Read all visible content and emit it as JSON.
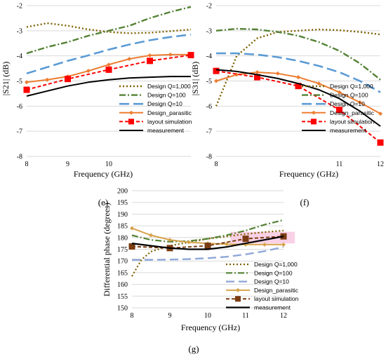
{
  "panels": [
    {
      "caption": "(e)",
      "chart_data": {
        "type": "line",
        "title": "",
        "xlabel": "Frequency (GHz)",
        "ylabel": "|S21| (dB)",
        "xlim": [
          8,
          12
        ],
        "ylim": [
          -8,
          -2
        ],
        "xticks": [
          8,
          9,
          10
        ],
        "yticks": [
          -2,
          -3,
          -4,
          -5,
          -6,
          -7,
          -8
        ],
        "legend": "bottom-right",
        "series": [
          {
            "name": "Design Q=1,000",
            "x": [
              8,
              8.5,
              9,
              9.5,
              10,
              10.5,
              11,
              11.5,
              12
            ],
            "y": [
              -2.85,
              -2.7,
              -2.8,
              -2.95,
              -3.05,
              -3.1,
              -3.08,
              -3.02,
              -2.95
            ]
          },
          {
            "name": "Design Q=100",
            "x": [
              8,
              8.5,
              9,
              9.5,
              10,
              10.5,
              11,
              11.5,
              12
            ],
            "y": [
              -3.9,
              -3.65,
              -3.45,
              -3.2,
              -3.0,
              -2.8,
              -2.5,
              -2.25,
              -2.05
            ]
          },
          {
            "name": "Design Q=10",
            "x": [
              8,
              8.5,
              9,
              9.5,
              10,
              10.5,
              11,
              11.5,
              12
            ],
            "y": [
              -4.7,
              -4.45,
              -4.2,
              -3.98,
              -3.75,
              -3.55,
              -3.38,
              -3.25,
              -3.15
            ]
          },
          {
            "name": "Design_parasitic",
            "x": [
              8,
              8.5,
              9,
              9.5,
              10,
              10.5,
              11,
              11.5,
              12
            ],
            "y": [
              -5.05,
              -4.95,
              -4.82,
              -4.6,
              -4.35,
              -4.12,
              -3.98,
              -3.95,
              -3.95
            ]
          },
          {
            "name": "layout simulation",
            "x": [
              8,
              9,
              10,
              11,
              12
            ],
            "y": [
              -5.35,
              -4.92,
              -4.55,
              -4.2,
              -3.97
            ]
          },
          {
            "name": "measurement",
            "x": [
              8,
              8.5,
              9,
              9.5,
              10,
              10.5,
              11,
              11.5,
              12
            ],
            "y": [
              -5.6,
              -5.4,
              -5.2,
              -5.05,
              -4.95,
              -4.88,
              -4.85,
              -4.82,
              -4.82
            ]
          }
        ]
      }
    },
    {
      "caption": "(f)",
      "chart_data": {
        "type": "line",
        "title": "",
        "xlabel": "Frequency (GHz)",
        "ylabel": "|S31| (dB)",
        "xlim": [
          8,
          12
        ],
        "ylim": [
          -8,
          -2
        ],
        "xticks": [
          8,
          11,
          12
        ],
        "yticks": [
          -2,
          -3,
          -4,
          -5,
          -6,
          -7,
          -8
        ],
        "legend": "bottom-right",
        "series": [
          {
            "name": "Design Q=1,000",
            "x": [
              8,
              8.5,
              9,
              9.5,
              10,
              10.5,
              11,
              11.5,
              12
            ],
            "y": [
              -6.0,
              -4.0,
              -3.3,
              -3.05,
              -3.0,
              -2.95,
              -2.98,
              -3.05,
              -3.15
            ]
          },
          {
            "name": "Design Q=100",
            "x": [
              8,
              8.5,
              9,
              9.5,
              10,
              10.5,
              11,
              11.5,
              12
            ],
            "y": [
              -3.0,
              -2.92,
              -2.95,
              -3.05,
              -3.2,
              -3.45,
              -3.8,
              -4.3,
              -4.95
            ]
          },
          {
            "name": "Design Q=10",
            "x": [
              8,
              8.5,
              9,
              9.5,
              10,
              10.5,
              11,
              11.5,
              12
            ],
            "y": [
              -3.9,
              -3.9,
              -3.95,
              -4.05,
              -4.2,
              -4.4,
              -4.65,
              -5.0,
              -5.45
            ]
          },
          {
            "name": "Design_parasitic",
            "x": [
              8,
              8.5,
              9,
              9.5,
              10,
              10.5,
              11,
              11.5,
              12
            ],
            "y": [
              -5.0,
              -4.75,
              -4.65,
              -4.7,
              -4.85,
              -5.1,
              -5.45,
              -5.85,
              -6.3
            ]
          },
          {
            "name": "layout simulation",
            "x": [
              8,
              9,
              10,
              11,
              12
            ],
            "y": [
              -4.6,
              -4.85,
              -5.2,
              -6.15,
              -7.45
            ]
          },
          {
            "name": "measurement",
            "x": [
              8,
              8.5,
              9,
              9.5,
              10,
              10.5,
              11,
              11.5,
              12
            ],
            "y": [
              -4.55,
              -4.62,
              -4.75,
              -4.9,
              -5.1,
              -5.35,
              -5.7,
              -6.2,
              -6.8
            ]
          }
        ]
      }
    },
    {
      "caption": "(g)",
      "chart_data": {
        "type": "line",
        "title": "",
        "xlabel": "Frequency (GHz)",
        "ylabel": "Differential phase (degrees)",
        "xlim": [
          8,
          12
        ],
        "ylim": [
          150,
          200
        ],
        "xticks": [
          8,
          9,
          10,
          11,
          12
        ],
        "yticks": [
          200,
          195,
          190,
          185,
          180,
          175,
          170,
          165,
          160,
          155,
          150
        ],
        "legend": "bottom-right",
        "series": [
          {
            "name": "Design Q=1,000",
            "x": [
              8,
              8.25,
              8.5,
              9,
              9.5,
              10,
              10.5,
              11,
              11.5,
              12
            ],
            "y": [
              163.5,
              170.5,
              174,
              176.5,
              178,
              179.5,
              180.5,
              181.5,
              182.3,
              183
            ]
          },
          {
            "name": "Design Q=100",
            "x": [
              8,
              8.5,
              9,
              9.5,
              10,
              10.5,
              11,
              11.5,
              12
            ],
            "y": [
              181,
              179,
              178.2,
              178.5,
              179.5,
              181,
              183,
              185.5,
              187.5
            ]
          },
          {
            "name": "Design Q=10",
            "x": [
              8,
              8.5,
              9,
              9.5,
              10,
              10.5,
              11,
              11.5,
              12
            ],
            "y": [
              170.5,
              170.5,
              170.6,
              170.8,
              171.2,
              171.8,
              172.8,
              174.2,
              176
            ]
          },
          {
            "name": "Design_parasitic",
            "x": [
              8,
              8.5,
              9,
              9.5,
              10,
              10.5,
              11,
              11.5,
              12
            ],
            "y": [
              184,
              181,
              179,
              178,
              177.5,
              177.2,
              177,
              177,
              177
            ]
          },
          {
            "name": "layout simulation",
            "x": [
              8,
              9,
              10,
              11,
              12
            ],
            "y": [
              176.2,
              175.5,
              176.5,
              179.5,
              180.5
            ]
          },
          {
            "name": "measurement",
            "x": [
              8,
              8.5,
              9,
              9.5,
              10,
              10.5,
              11,
              11.5,
              12
            ],
            "y": [
              177.5,
              176.5,
              175.5,
              175,
              175,
              176,
              177.5,
              179,
              180.5
            ]
          }
        ]
      }
    }
  ],
  "styles": {
    "Design Q=1,000": {
      "color": "#7f6000",
      "dash": "2,3",
      "width": 2.4,
      "marker": "none"
    },
    "Design Q=100": {
      "color": "#548235",
      "dash": "9,3,2,3",
      "width": 2.4,
      "marker": "none"
    },
    "Design Q=10": {
      "color": "#5b9bd5",
      "dash": "14,6",
      "width": 2.6,
      "marker": "none"
    },
    "Design_parasitic": {
      "color": "#ed7d31",
      "dash": "",
      "width": 2,
      "marker": "diamond"
    },
    "layout simulation": {
      "color": "#ff0000",
      "dash": "5,3",
      "width": 2,
      "marker": "square"
    },
    "measurement": {
      "color": "#000000",
      "dash": "",
      "width": 2,
      "marker": "none"
    }
  },
  "styles_g": {
    "Design Q=1,000": {
      "color": "#7f6000",
      "dash": "2,3",
      "width": 2.2,
      "marker": "none"
    },
    "Design Q=100": {
      "color": "#548235",
      "dash": "9,3,2,3",
      "width": 2.2,
      "marker": "none"
    },
    "Design Q=10": {
      "color": "#8fa7d9",
      "dash": "12,6",
      "width": 2.4,
      "marker": "none"
    },
    "Design_parasitic": {
      "color": "#d6a24a",
      "dash": "",
      "width": 2,
      "marker": "diamond"
    },
    "layout simulation": {
      "color": "#7a3c12",
      "dash": "5,3",
      "width": 2,
      "marker": "square"
    },
    "measurement": {
      "color": "#000000",
      "dash": "",
      "width": 2.2,
      "marker": "none"
    }
  },
  "highlight_color": "#f7c6e0"
}
